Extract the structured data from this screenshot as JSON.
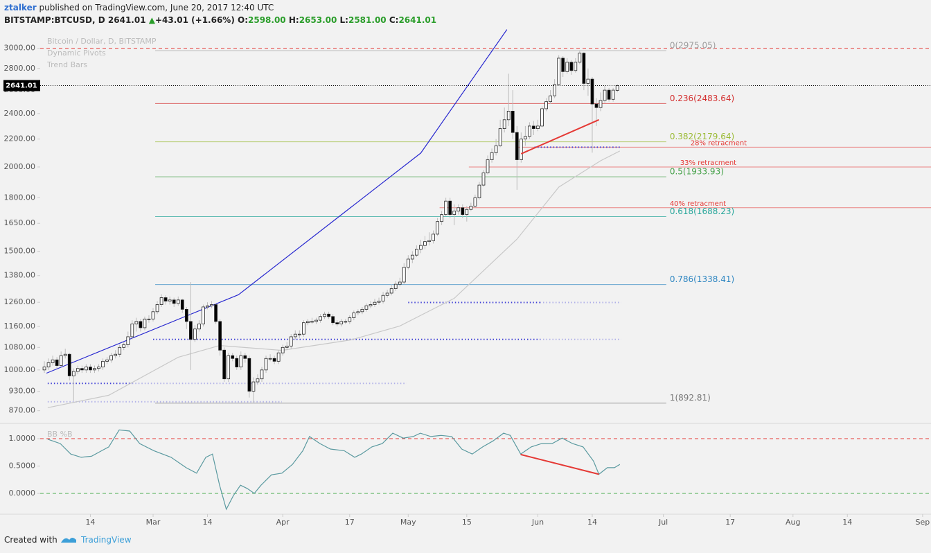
{
  "header": {
    "author": "ztalker",
    "published": "published on TradingView.com, June 20, 2017 12:40 UTC",
    "symbol": "BITSTAMP:BTCUSD, D",
    "last": "2641.01",
    "arrow": "▲",
    "change": "+43.01 (+1.66%)",
    "o_label": "O:",
    "o": "2598.00",
    "h_label": "H:",
    "h": "2653.00",
    "l_label": "L:",
    "l": "2581.00",
    "c_label": "C:",
    "c": "2641.01"
  },
  "footer": {
    "created": "Created with",
    "brand": "TradingView"
  },
  "chart_data": [
    {
      "type": "candlestick",
      "title": "Bitcoin / Dollar, D, BITSTAMP",
      "studies": [
        "Dynamic Pivots",
        "Trend Bars"
      ],
      "log_scale": true,
      "grid": false,
      "xlim": [
        -1,
        212
      ],
      "ylim": [
        845,
        3180
      ],
      "xticks": [
        {
          "value": 11,
          "label": "14"
        },
        {
          "value": 26,
          "label": "Mar"
        },
        {
          "value": 39,
          "label": "14"
        },
        {
          "value": 57,
          "label": "Apr"
        },
        {
          "value": 73,
          "label": "17"
        },
        {
          "value": 87,
          "label": "May"
        },
        {
          "value": 101,
          "label": "15"
        },
        {
          "value": 118,
          "label": "Jun"
        },
        {
          "value": 131,
          "label": "14"
        },
        {
          "value": 148,
          "label": "Jul"
        },
        {
          "value": 164,
          "label": "17"
        },
        {
          "value": 179,
          "label": "Aug"
        },
        {
          "value": 192,
          "label": "14"
        },
        {
          "value": 210,
          "label": "Sep"
        }
      ],
      "yticks": [
        {
          "value": 870,
          "label": "870.00"
        },
        {
          "value": 930,
          "label": "930.00"
        },
        {
          "value": 1000,
          "label": "1000.00"
        },
        {
          "value": 1080,
          "label": "1080.00"
        },
        {
          "value": 1160,
          "label": "1160.00"
        },
        {
          "value": 1260,
          "label": "1260.00"
        },
        {
          "value": 1380,
          "label": "1380.00"
        },
        {
          "value": 1500,
          "label": "1500.00"
        },
        {
          "value": 1650,
          "label": "1650.00"
        },
        {
          "value": 1800,
          "label": "1800.00"
        },
        {
          "value": 2000,
          "label": "2000.00"
        },
        {
          "value": 2200,
          "label": "2200.00"
        },
        {
          "value": 2400,
          "label": "2400.00"
        },
        {
          "value": 2600,
          "label": "2600.00"
        },
        {
          "value": 2800,
          "label": "2800.00"
        },
        {
          "value": 3000,
          "label": "3000.00"
        }
      ],
      "up_color": "#ffffff",
      "down_color": "#000000",
      "wick_color": "#bbbbbb",
      "open": [
        1000,
        1010,
        1025,
        1035,
        1015,
        1050,
        1055,
        980,
        995,
        1005,
        1000,
        1010,
        1000,
        1005,
        1010,
        1030,
        1035,
        1050,
        1055,
        1080,
        1090,
        1120,
        1170,
        1180,
        1155,
        1190,
        1190,
        1220,
        1250,
        1280,
        1265,
        1270,
        1255,
        1270,
        1230,
        1180,
        1110,
        1150,
        1170,
        1240,
        1245,
        1250,
        1180,
        1070,
        970,
        1050,
        1040,
        1010,
        1050,
        1040,
        930,
        960,
        970,
        1000,
        1040,
        1040,
        1030,
        1060,
        1080,
        1085,
        1120,
        1130,
        1130,
        1175,
        1180,
        1180,
        1185,
        1200,
        1210,
        1200,
        1175,
        1170,
        1180,
        1180,
        1195,
        1215,
        1220,
        1230,
        1245,
        1250,
        1260,
        1265,
        1290,
        1300,
        1320,
        1340,
        1350,
        1420,
        1460,
        1480,
        1510,
        1530,
        1550,
        1555,
        1590,
        1660,
        1700,
        1780,
        1700,
        1720,
        1740,
        1700,
        1730,
        1750,
        1800,
        1880,
        1960,
        2050,
        2100,
        2150,
        2280,
        2350,
        2420,
        2250,
        2050,
        2200,
        2220,
        2300,
        2280,
        2300,
        2440,
        2500,
        2550,
        2650,
        2900,
        2770,
        2860,
        2780,
        2860,
        2950,
        2660,
        2700,
        2480,
        2450,
        2510,
        2600,
        2520,
        2598
      ],
      "high": [
        1030,
        1040,
        1050,
        1045,
        1065,
        1075,
        1060,
        1005,
        1015,
        1015,
        1020,
        1020,
        1015,
        1020,
        1040,
        1045,
        1060,
        1070,
        1090,
        1100,
        1140,
        1185,
        1195,
        1190,
        1200,
        1205,
        1235,
        1265,
        1295,
        1290,
        1285,
        1280,
        1285,
        1275,
        1240,
        1350,
        1165,
        1185,
        1250,
        1260,
        1265,
        1255,
        1190,
        1080,
        1060,
        1060,
        1050,
        1065,
        1060,
        1050,
        975,
        985,
        1010,
        1050,
        1055,
        1050,
        1070,
        1090,
        1100,
        1130,
        1145,
        1145,
        1185,
        1190,
        1195,
        1195,
        1210,
        1220,
        1220,
        1210,
        1185,
        1190,
        1190,
        1205,
        1225,
        1230,
        1240,
        1255,
        1265,
        1275,
        1280,
        1305,
        1315,
        1340,
        1355,
        1370,
        1440,
        1480,
        1500,
        1530,
        1560,
        1580,
        1600,
        1610,
        1680,
        1720,
        1800,
        1800,
        1760,
        1760,
        1760,
        1750,
        1770,
        1820,
        1900,
        1980,
        2080,
        2130,
        2200,
        2350,
        2450,
        2750,
        2600,
        2300,
        2250,
        2300,
        2330,
        2340,
        2350,
        2460,
        2530,
        2600,
        2700,
        2930,
        2920,
        2900,
        2880,
        2900,
        2980,
        2960,
        2800,
        2720,
        2530,
        2580,
        2640,
        2620,
        2620,
        2653
      ],
      "low": [
        990,
        1000,
        1015,
        1005,
        1010,
        1040,
        965,
        900,
        985,
        990,
        990,
        990,
        990,
        995,
        1000,
        1020,
        1025,
        1040,
        1045,
        1070,
        1080,
        1110,
        1140,
        1140,
        1145,
        1175,
        1180,
        1210,
        1240,
        1250,
        1250,
        1240,
        1245,
        1215,
        1150,
        1000,
        1100,
        1140,
        1160,
        1230,
        1235,
        1170,
        1050,
        960,
        960,
        1030,
        1000,
        1000,
        1025,
        910,
        895,
        950,
        960,
        990,
        1030,
        1020,
        1020,
        1050,
        1070,
        1075,
        1110,
        1115,
        1120,
        1165,
        1170,
        1170,
        1175,
        1190,
        1190,
        1165,
        1160,
        1160,
        1170,
        1170,
        1185,
        1205,
        1210,
        1220,
        1235,
        1240,
        1250,
        1255,
        1280,
        1290,
        1310,
        1330,
        1340,
        1410,
        1440,
        1470,
        1490,
        1510,
        1530,
        1540,
        1580,
        1640,
        1690,
        1680,
        1640,
        1700,
        1680,
        1660,
        1720,
        1740,
        1790,
        1870,
        1950,
        2030,
        2080,
        2140,
        2250,
        2300,
        2200,
        1850,
        2030,
        2150,
        2200,
        2230,
        2260,
        2290,
        2420,
        2480,
        2530,
        2640,
        2720,
        2750,
        2740,
        2760,
        2840,
        2600,
        2550,
        2100,
        2300,
        2420,
        2490,
        2500,
        2500,
        2581
      ],
      "close": [
        1010,
        1025,
        1035,
        1015,
        1050,
        1055,
        980,
        995,
        1005,
        1000,
        1010,
        1000,
        1005,
        1010,
        1030,
        1035,
        1050,
        1055,
        1080,
        1090,
        1120,
        1170,
        1180,
        1155,
        1190,
        1190,
        1220,
        1250,
        1280,
        1265,
        1270,
        1255,
        1270,
        1230,
        1180,
        1110,
        1150,
        1170,
        1240,
        1245,
        1250,
        1180,
        1070,
        970,
        1050,
        1040,
        1010,
        1050,
        1040,
        930,
        960,
        970,
        1000,
        1040,
        1040,
        1030,
        1060,
        1080,
        1085,
        1120,
        1130,
        1130,
        1175,
        1180,
        1180,
        1185,
        1200,
        1210,
        1200,
        1175,
        1170,
        1180,
        1180,
        1195,
        1215,
        1220,
        1230,
        1245,
        1250,
        1260,
        1265,
        1290,
        1300,
        1320,
        1340,
        1350,
        1420,
        1460,
        1480,
        1510,
        1530,
        1550,
        1555,
        1590,
        1660,
        1700,
        1780,
        1700,
        1720,
        1740,
        1700,
        1730,
        1750,
        1800,
        1880,
        1960,
        2050,
        2100,
        2150,
        2280,
        2350,
        2420,
        2250,
        2050,
        2200,
        2220,
        2300,
        2280,
        2300,
        2440,
        2500,
        2550,
        2650,
        2900,
        2770,
        2860,
        2780,
        2860,
        2950,
        2660,
        2700,
        2480,
        2450,
        2510,
        2600,
        2520,
        2600,
        2641.01
      ],
      "last_price": 2641.01,
      "last_price_color": "#000000",
      "fib_x": [
        26.5,
        148.7
      ],
      "fib_levels": [
        {
          "label": "0(2975.05)",
          "value": 2975.05,
          "color": "#9e9e9e"
        },
        {
          "label": "0.236(2483.64)",
          "value": 2483.64,
          "color": "#d32f2f"
        },
        {
          "label": "0.382(2179.64)",
          "value": 2179.64,
          "color": "#9bbb35"
        },
        {
          "label": "0.5(1933.93)",
          "value": 1933.93,
          "color": "#43a047"
        },
        {
          "label": "0.618(1688.23)",
          "value": 1688.23,
          "color": "#26a69a"
        },
        {
          "label": "0.786(1338.41)",
          "value": 1338.41,
          "color": "#2e86c1"
        },
        {
          "label": "1(892.81)",
          "value": 892.81,
          "color": "#777777"
        }
      ],
      "hlines": [
        {
          "value": 3000,
          "color": "#e53935"
        }
      ],
      "retracements": [
        {
          "label": "28% retracment",
          "value": 2140,
          "start": 113,
          "color": "#e53935"
        },
        {
          "label": "33% retracment",
          "value": 2000,
          "start": 101.5,
          "color": "#e53935"
        },
        {
          "label": "40% retracment",
          "value": 1740,
          "start": 94.5,
          "color": "#e53935"
        }
      ],
      "pivots": [
        {
          "value": 955,
          "x": [
            0.8,
            21
          ],
          "color": "#3f3fd6"
        },
        {
          "value": 955,
          "x": [
            21,
            86.6
          ],
          "color": "#b0b0e8"
        },
        {
          "value": 897,
          "x": [
            0.8,
            56.8
          ],
          "color": "#b0b0e8"
        },
        {
          "value": 1110,
          "x": [
            26,
            118.5
          ],
          "color": "#3f3fd6"
        },
        {
          "value": 1110,
          "x": [
            118.5,
            137.9
          ],
          "color": "#b0b0e8"
        },
        {
          "value": 1259,
          "x": [
            87,
            118.5
          ],
          "color": "#3f3fd6"
        },
        {
          "value": 1259,
          "x": [
            118.5,
            137.9
          ],
          "color": "#b0b0e8"
        },
        {
          "value": 2140,
          "x": [
            117.2,
            137.9
          ],
          "color": "#3f3fd6"
        }
      ],
      "moving_average": {
        "color": "#c8c8c8",
        "x": [
          0.8,
          15.4,
          32,
          41.9,
          56.8,
          73.3,
          85,
          98,
          113,
          123,
          133,
          137.6
        ],
        "values": [
          879,
          917,
          1044,
          1087,
          1069,
          1108,
          1162,
          1277,
          1563,
          1867,
          2043,
          2112
        ]
      },
      "trend_line": {
        "color": "#2a2ad0",
        "x": [
          0.5,
          46.4,
          90,
          110.6
        ],
        "values": [
          989,
          1293,
          2097,
          3198
        ]
      },
      "divergence_line": {
        "color": "#e53935",
        "x": [
          114,
          132.6
        ],
        "values": [
          2092,
          2350
        ]
      }
    },
    {
      "type": "line",
      "title": "BB %B",
      "color": "#5b9aa0",
      "xlim": [
        -1,
        212
      ],
      "ylim": [
        -0.354,
        1.165
      ],
      "yticks": [
        {
          "value": 0,
          "label": "0.0000"
        },
        {
          "value": 0.5,
          "label": "0.5000"
        },
        {
          "value": 1,
          "label": "1.0000"
        }
      ],
      "hlines": [
        {
          "value": 1,
          "color": "#e53935"
        },
        {
          "value": 0,
          "color": "#4caf50"
        }
      ],
      "x": [
        0.8,
        3.8,
        6.3,
        8.8,
        11.3,
        13.7,
        15.4,
        17.9,
        20.4,
        22.8,
        26.2,
        30.3,
        33.9,
        36.4,
        38.6,
        40.2,
        41.9,
        43.5,
        45.2,
        46.9,
        48.5,
        50.2,
        51.8,
        54.3,
        56.8,
        59.3,
        61.8,
        63.4,
        65.9,
        68.4,
        71.7,
        74.2,
        75.8,
        78.3,
        80.8,
        83.3,
        85.8,
        88.2,
        89.9,
        92.4,
        94.9,
        97.4,
        99.8,
        102.3,
        104.8,
        107.3,
        109.8,
        111.4,
        113.9,
        116.4,
        118.9,
        121.4,
        123.8,
        126.3,
        128.8,
        131.3,
        132.6,
        134.6,
        136.3,
        137.6
      ],
      "values": [
        0.99,
        0.91,
        0.72,
        0.66,
        0.68,
        0.78,
        0.85,
        1.16,
        1.14,
        0.91,
        0.78,
        0.66,
        0.47,
        0.37,
        0.66,
        0.72,
        0.15,
        -0.29,
        -0.04,
        0.15,
        0.09,
        0,
        0.15,
        0.34,
        0.37,
        0.53,
        0.78,
        1.04,
        0.91,
        0.81,
        0.78,
        0.66,
        0.72,
        0.85,
        0.91,
        1.1,
        1.01,
        1.04,
        1.1,
        1.04,
        1.06,
        1.04,
        0.81,
        0.72,
        0.85,
        0.96,
        1.1,
        1.06,
        0.72,
        0.85,
        0.91,
        0.91,
        1.01,
        0.91,
        0.85,
        0.59,
        0.35,
        0.47,
        0.47,
        0.53
      ],
      "divergence_line": {
        "color": "#e53935",
        "x": [
          113.9,
          132.6
        ],
        "values": [
          0.71,
          0.35
        ]
      }
    }
  ]
}
